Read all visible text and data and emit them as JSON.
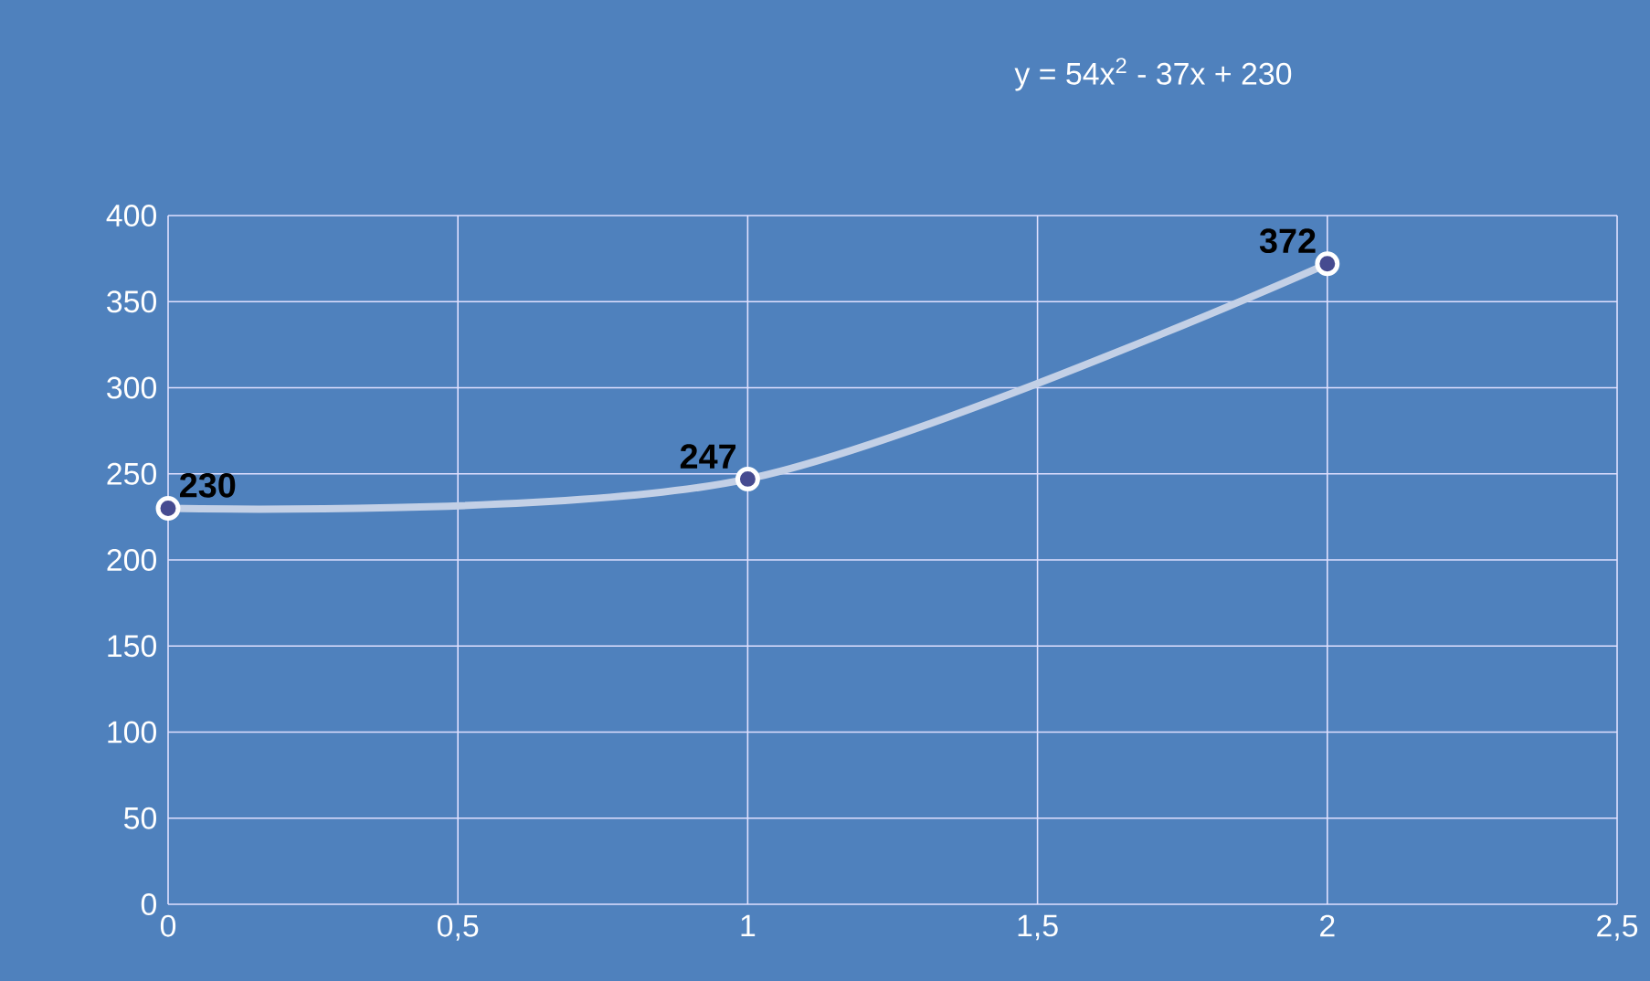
{
  "chart_data": {
    "type": "line",
    "annotations": [
      "y = 54x$^{2}$ - 37x + 230"
    ],
    "x": [
      0,
      1,
      2
    ],
    "series": [
      {
        "color": "#c3d0e6",
        "values": [
          230,
          247,
          372
        ]
      }
    ],
    "xlim": [
      0,
      2.5
    ],
    "xticks": [
      0,
      {
        "value": 0.5,
        "label": "0,5"
      },
      1,
      {
        "value": 1.5,
        "label": "1,5"
      },
      2,
      {
        "value": 2.5,
        "label": "2,5"
      }
    ],
    "ylim": [
      0,
      400
    ],
    "yticks": [
      0,
      50,
      100,
      150,
      200,
      250,
      300,
      350,
      400
    ],
    "grid": true,
    "marker": "circle",
    "data_labels": true
  }
}
